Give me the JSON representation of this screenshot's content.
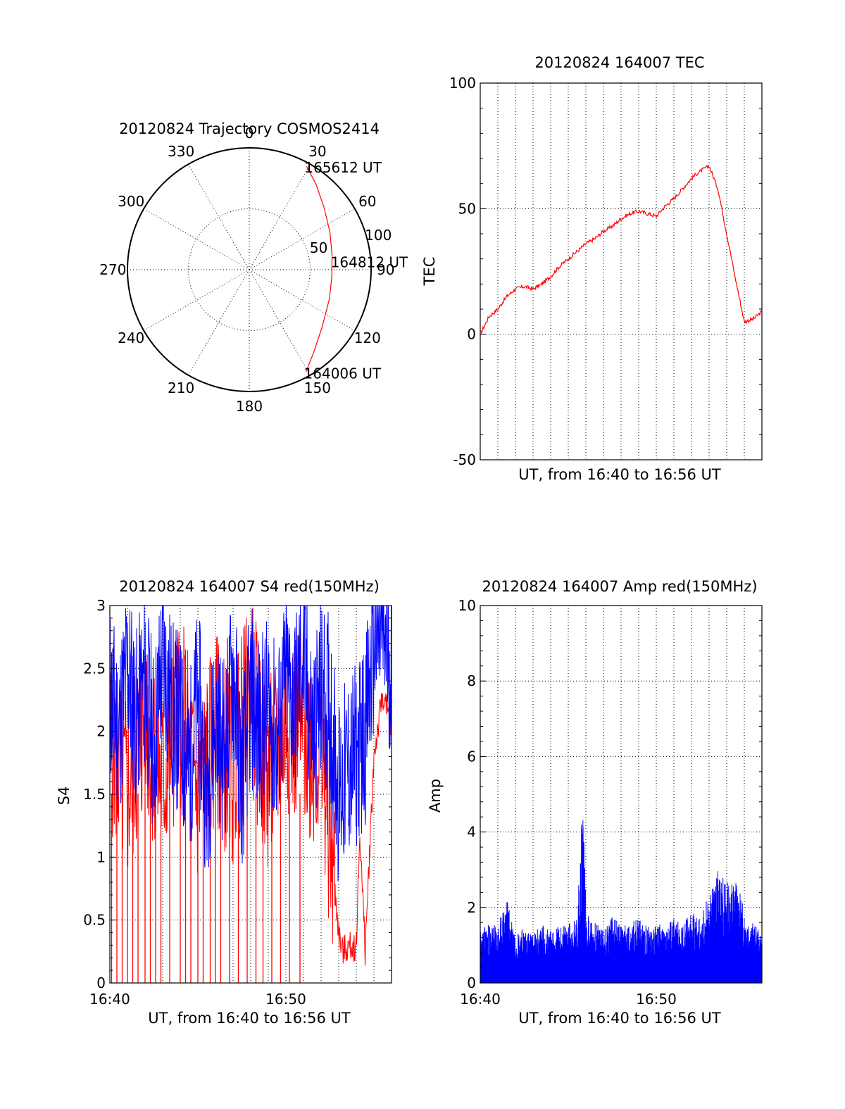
{
  "colors": {
    "red": "#ff0000",
    "blue": "#0000ff",
    "axis": "#000000",
    "background": "#ffffff"
  },
  "chart_data": [
    {
      "id": "trajectory",
      "type": "polar",
      "title": "20120824 Trajectory COSMOS2414",
      "azimuth_labels": [
        "0",
        "30",
        "60",
        "90",
        "120",
        "150",
        "180",
        "210",
        "240",
        "270",
        "300",
        "330"
      ],
      "azimuth_values": [
        0,
        30,
        60,
        90,
        120,
        150,
        180,
        210,
        240,
        270,
        300,
        330
      ],
      "radial_labels": [
        "50",
        "100"
      ],
      "radial_values": [
        50,
        100
      ],
      "radial_max": 100,
      "trajectory": {
        "color": "#ff0000",
        "points": [
          {
            "az": 151,
            "r": 96
          },
          {
            "az": 142,
            "r": 86
          },
          {
            "az": 128,
            "r": 76
          },
          {
            "az": 110,
            "r": 70
          },
          {
            "az": 95,
            "r": 68
          },
          {
            "az": 80,
            "r": 69
          },
          {
            "az": 65,
            "r": 73
          },
          {
            "az": 50,
            "r": 80
          },
          {
            "az": 38,
            "r": 89
          },
          {
            "az": 29,
            "r": 97
          }
        ]
      },
      "annotations": [
        {
          "text": "165612 UT",
          "az": 29,
          "r": 97
        },
        {
          "text": "164812 UT",
          "az": 84,
          "r": 69
        },
        {
          "text": "164006 UT",
          "az": 151,
          "r": 96
        }
      ]
    },
    {
      "id": "tec",
      "type": "line",
      "title": "20120824 164007 TEC",
      "xlabel": "UT, from 16:40 to 16:56 UT",
      "ylabel": "TEC",
      "xlim_minutes": [
        0,
        16
      ],
      "ylim": [
        -50,
        100
      ],
      "yticks": [
        -50,
        0,
        50,
        100
      ],
      "ytick_labels": [
        "-50",
        "0",
        "50",
        "100"
      ],
      "xgrid_minutes": [
        1,
        2,
        3,
        4,
        5,
        6,
        7,
        8,
        9,
        10,
        11,
        12,
        13,
        14,
        15
      ],
      "series": [
        {
          "color": "#ff0000",
          "x_minutes": [
            0,
            0.5,
            1,
            1.5,
            2,
            2.5,
            3,
            3.5,
            4,
            4.5,
            5,
            5.5,
            6,
            6.5,
            7,
            7.5,
            8,
            8.5,
            9,
            9.5,
            10,
            10.5,
            11,
            11.5,
            12,
            12.3,
            13,
            13.5,
            14,
            14.5,
            15,
            15.5,
            16
          ],
          "values": [
            0,
            7,
            10,
            15,
            18,
            19,
            18,
            20,
            23,
            27,
            30,
            33,
            36,
            38,
            41,
            43,
            46,
            48,
            49,
            48,
            47,
            51,
            54,
            58,
            62,
            64,
            67,
            58,
            40,
            22,
            5,
            6,
            9
          ]
        }
      ]
    },
    {
      "id": "s4",
      "type": "line",
      "title": "20120824 164007 S4 red(150MHz)",
      "xlabel": "UT, from 16:40 to 16:56 UT",
      "ylabel": "S4",
      "xlim_minutes": [
        0,
        16
      ],
      "ylim": [
        0,
        3
      ],
      "yticks": [
        0,
        0.5,
        1,
        1.5,
        2,
        2.5,
        3
      ],
      "ytick_labels": [
        "0",
        "0.5",
        "1",
        "1.5",
        "2",
        "2.5",
        "3"
      ],
      "xticks_minutes": [
        0,
        10
      ],
      "xtick_labels": [
        "16:40",
        "16:50"
      ],
      "xgrid_minutes": [
        1,
        2,
        3,
        4,
        5,
        6,
        7,
        8,
        9,
        10,
        11,
        12,
        13,
        14,
        15
      ],
      "series": [
        {
          "color": "#ff0000",
          "x_minutes": [
            0,
            1,
            2,
            3,
            4,
            5,
            6,
            7,
            8,
            9,
            10,
            11,
            12,
            12.5,
            13,
            13.2,
            13.5,
            14,
            14.2,
            14.5,
            15,
            15.5,
            16
          ],
          "values": [
            2.0,
            1.5,
            2.1,
            1.6,
            2.2,
            1.5,
            2.0,
            1.7,
            2.3,
            1.6,
            2.1,
            2.0,
            1.8,
            1.2,
            0.4,
            0.25,
            0.28,
            0.3,
            1.2,
            0.25,
            1.8,
            2.3,
            2.0
          ],
          "dropout_minutes": [
            0.1,
            0.4,
            0.7,
            1.0,
            1.3,
            1.6,
            2.0,
            2.3,
            2.6,
            2.9,
            3.4,
            4.0,
            4.3,
            4.6,
            5.0,
            5.3,
            5.7,
            6.0,
            6.3,
            6.8,
            7.3,
            7.8,
            8.3,
            8.7,
            9.2,
            9.7,
            10.2,
            10.8
          ]
        },
        {
          "color": "#0000ff",
          "x_minutes": [
            0,
            0.5,
            1,
            1.5,
            2,
            2.5,
            3,
            3.5,
            4,
            4.5,
            5,
            5.5,
            6,
            6.5,
            7,
            7.5,
            8,
            8.5,
            9,
            9.5,
            10,
            10.5,
            11,
            11.5,
            12,
            12.5,
            13,
            13.5,
            14,
            14.5,
            15,
            15.5,
            16
          ],
          "values": [
            2.3,
            2.0,
            2.5,
            2.1,
            2.4,
            1.9,
            2.6,
            2.2,
            2.0,
            1.7,
            2.3,
            1.5,
            2.1,
            1.8,
            2.5,
            1.6,
            2.3,
            2.0,
            2.2,
            1.9,
            2.4,
            2.2,
            2.6,
            2.0,
            2.3,
            2.2,
            1.5,
            1.7,
            1.8,
            2.0,
            2.7,
            2.8,
            2.5
          ]
        }
      ]
    },
    {
      "id": "amp",
      "type": "line",
      "title": "20120824 164007 Amp red(150MHz)",
      "xlabel": "UT, from 16:40 to 16:56 UT",
      "ylabel": "Amp",
      "xlim_minutes": [
        0,
        16
      ],
      "ylim": [
        0,
        10
      ],
      "yticks": [
        0,
        2,
        4,
        6,
        8,
        10
      ],
      "ytick_labels": [
        "0",
        "2",
        "4",
        "6",
        "8",
        "10"
      ],
      "xticks_minutes": [
        0,
        10
      ],
      "xtick_labels": [
        "16:40",
        "16:50"
      ],
      "xgrid_minutes": [
        1,
        2,
        3,
        4,
        5,
        6,
        7,
        8,
        9,
        10,
        11,
        12,
        13,
        14,
        15
      ],
      "series": [
        {
          "color": "#0000ff",
          "x_minutes": [
            0,
            0.5,
            1,
            1.5,
            2,
            2.5,
            3,
            3.5,
            4,
            4.5,
            5,
            5.5,
            5.75,
            5.85,
            6,
            6.5,
            7,
            7.5,
            8,
            8.5,
            9,
            9.5,
            10,
            10.5,
            11,
            11.5,
            12,
            12.5,
            13,
            13.5,
            14,
            14.5,
            15,
            15.5,
            16
          ],
          "values": [
            1.4,
            1.6,
            1.5,
            2.3,
            1.4,
            1.5,
            1.3,
            1.6,
            1.4,
            1.5,
            1.6,
            1.7,
            4.5,
            5.2,
            2.0,
            1.6,
            1.5,
            1.8,
            1.5,
            1.6,
            1.7,
            1.5,
            1.6,
            1.5,
            1.7,
            1.6,
            1.9,
            1.7,
            2.4,
            3.0,
            2.7,
            2.8,
            2.0,
            1.6,
            1.3
          ]
        }
      ]
    }
  ]
}
